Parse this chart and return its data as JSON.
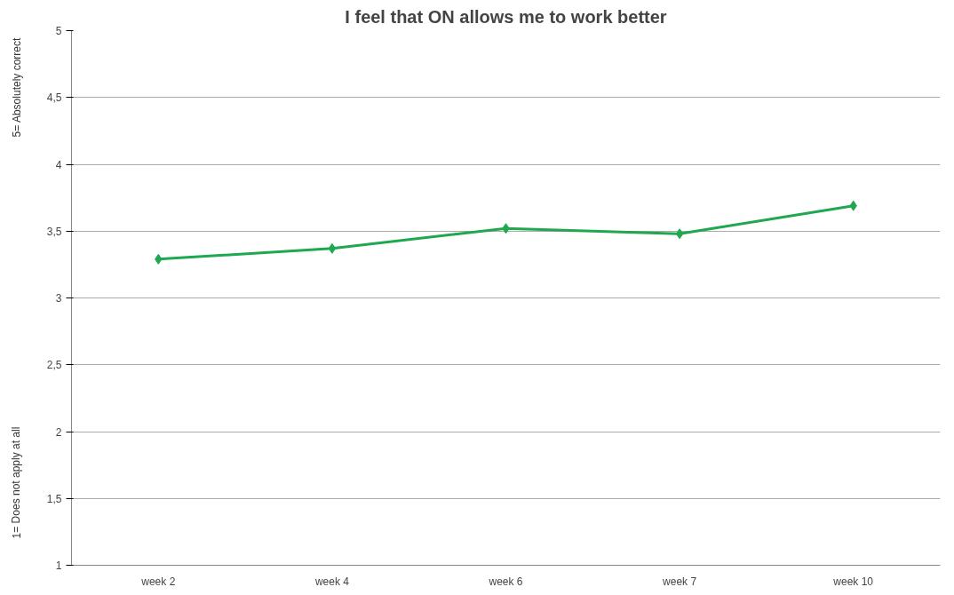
{
  "chart_data": {
    "type": "line",
    "title": "I feel that ON allows me to work better",
    "ylabel": "5= Absolutely correct",
    "annotations": [
      "1= Does not apply at all"
    ],
    "categories": [
      "week 2",
      "week 4",
      "week 6",
      "week 7",
      "week 10"
    ],
    "series": [
      {
        "color": "#1fa84f",
        "values": [
          3.29,
          3.37,
          3.52,
          3.48,
          3.69
        ]
      }
    ],
    "ylim": [
      1,
      5
    ],
    "yticks": [
      1,
      {
        "value": 1.5,
        "label": "1,5"
      },
      2,
      {
        "value": 2.5,
        "label": "2,5"
      },
      3,
      {
        "value": 3.5,
        "label": "3,5"
      },
      4,
      {
        "value": 4.5,
        "label": "4,5"
      },
      5
    ],
    "grid": "y",
    "marker": "diamond",
    "line_style": "solid"
  }
}
